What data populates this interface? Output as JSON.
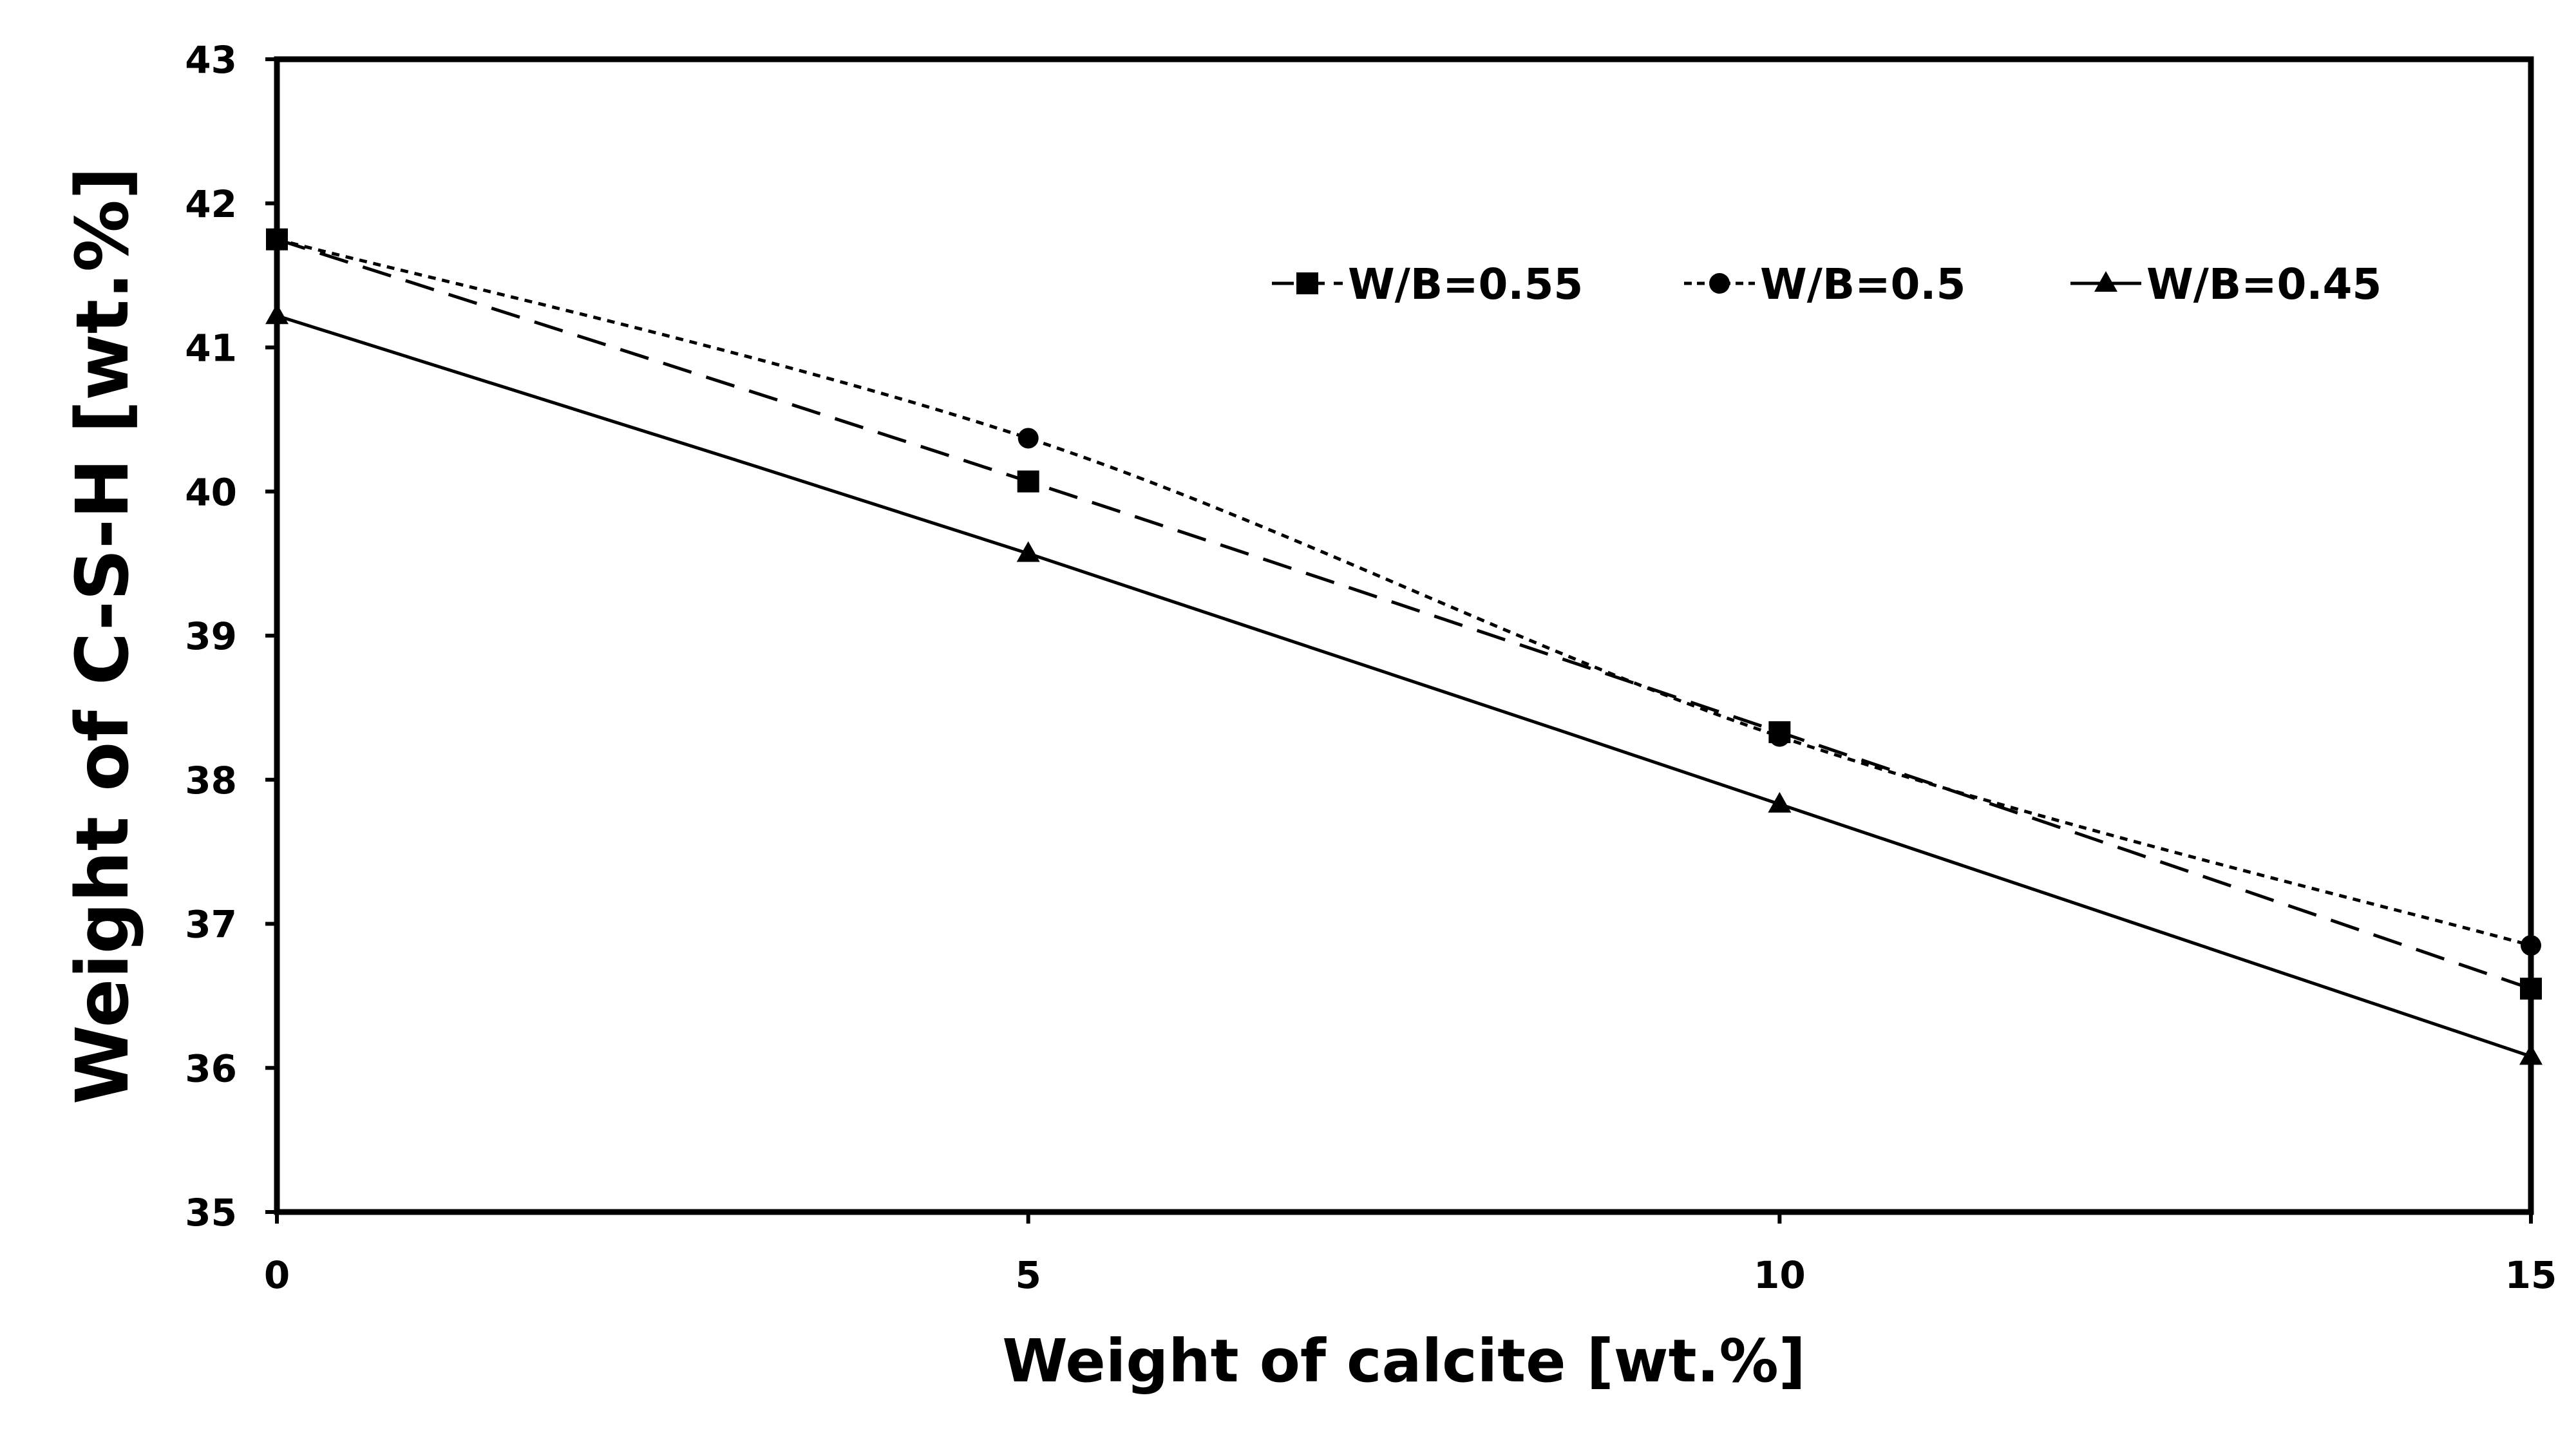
{
  "chart_data": {
    "type": "line",
    "title": "",
    "xlabel": "Weight of calcite [wt.%]",
    "ylabel": "Weight of C-S-H [wt.%]",
    "xlim": [
      0,
      15
    ],
    "ylim": [
      35,
      43
    ],
    "xticks": [
      0,
      5,
      10,
      15
    ],
    "yticks": [
      35,
      36,
      37,
      38,
      39,
      40,
      41,
      42,
      43
    ],
    "grid": false,
    "legend_position": "top-right",
    "x": [
      0,
      5,
      10,
      15
    ],
    "series": [
      {
        "name": "W/B=0.55",
        "values": [
          41.75,
          40.07,
          38.33,
          36.55
        ],
        "marker": "square",
        "line_style": "long-dash",
        "color": "#000000"
      },
      {
        "name": "W/B=0.5",
        "values": [
          41.75,
          40.37,
          38.3,
          36.85
        ],
        "marker": "circle",
        "line_style": "short-dash",
        "color": "#000000"
      },
      {
        "name": "W/B=0.45",
        "values": [
          41.22,
          39.57,
          37.83,
          36.08
        ],
        "marker": "triangle",
        "line_style": "solid",
        "color": "#000000"
      }
    ]
  }
}
